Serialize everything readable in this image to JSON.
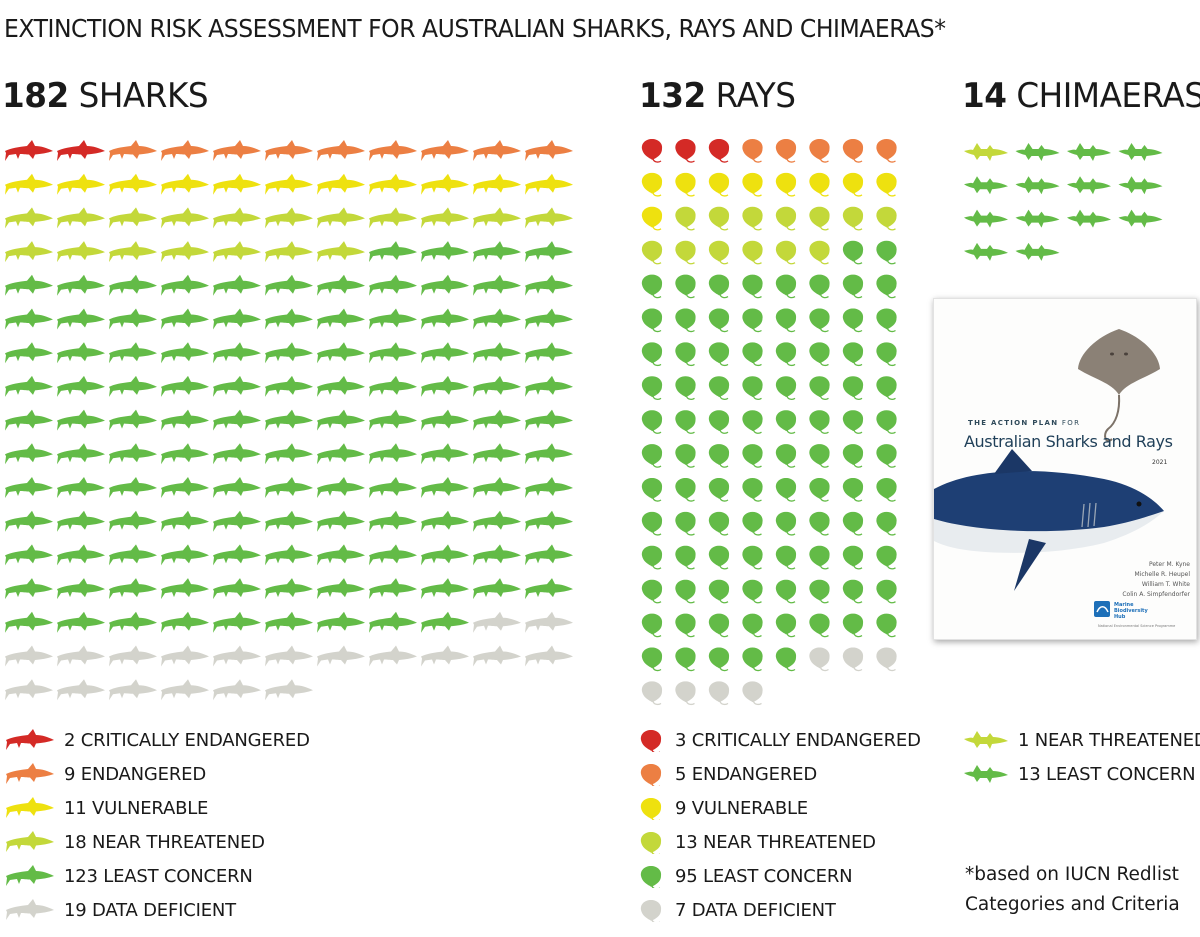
{
  "title": "EXTINCTION RISK ASSESSMENT FOR AUSTRALIAN SHARKS, RAYS AND CHIMAERAS*",
  "colors": {
    "critically_endangered": "#d42a26",
    "endangered": "#ec7f43",
    "vulnerable": "#eee10f",
    "near_threatened": "#c3d83a",
    "least_concern": "#63bb47",
    "data_deficient": "#d3d3cc"
  },
  "chart_data": [
    {
      "type": "pictogram",
      "group": "sharks",
      "heading_number": "182",
      "heading_label": "SHARKS",
      "total": 182,
      "icon": "shark-icon",
      "icons_per_row": 11,
      "categories": [
        "critically_endangered",
        "endangered",
        "vulnerable",
        "near_threatened",
        "least_concern",
        "data_deficient"
      ],
      "values": [
        2,
        9,
        11,
        18,
        123,
        19
      ],
      "legend": [
        {
          "category": "critically_endangered",
          "label": "2 CRITICALLY ENDANGERED"
        },
        {
          "category": "endangered",
          "label": "9 ENDANGERED"
        },
        {
          "category": "vulnerable",
          "label": "11 VULNERABLE"
        },
        {
          "category": "near_threatened",
          "label": "18 NEAR THREATENED"
        },
        {
          "category": "least_concern",
          "label": "123 LEAST CONCERN"
        },
        {
          "category": "data_deficient",
          "label": "19 DATA DEFICIENT"
        }
      ]
    },
    {
      "type": "pictogram",
      "group": "rays",
      "heading_number": "132",
      "heading_label": "RAYS",
      "total": 132,
      "icon": "ray-icon",
      "icons_per_row": 8,
      "categories": [
        "critically_endangered",
        "endangered",
        "vulnerable",
        "near_threatened",
        "least_concern",
        "data_deficient"
      ],
      "values": [
        3,
        5,
        9,
        13,
        95,
        7
      ],
      "legend": [
        {
          "category": "critically_endangered",
          "label": "3 CRITICALLY ENDANGERED"
        },
        {
          "category": "endangered",
          "label": "5 ENDANGERED"
        },
        {
          "category": "vulnerable",
          "label": "9 VULNERABLE"
        },
        {
          "category": "near_threatened",
          "label": "13 NEAR THREATENED"
        },
        {
          "category": "least_concern",
          "label": "95 LEAST CONCERN"
        },
        {
          "category": "data_deficient",
          "label": "7 DATA DEFICIENT"
        }
      ]
    },
    {
      "type": "pictogram",
      "group": "chimaeras",
      "heading_number": "14",
      "heading_label": "CHIMAERAS",
      "total": 14,
      "icon": "chimaera-icon",
      "icons_per_row": 4,
      "categories": [
        "near_threatened",
        "least_concern"
      ],
      "values": [
        1,
        13
      ],
      "legend": [
        {
          "category": "near_threatened",
          "label": "1 NEAR THREATENED"
        },
        {
          "category": "least_concern",
          "label": "13 LEAST CONCERN"
        }
      ]
    }
  ],
  "footnote": {
    "line1": "*based on IUCN Redlist",
    "line2": "Categories and Criteria"
  },
  "book_cover": {
    "pre_title_bold": "THE ACTION PLAN",
    "pre_title_rest": " FOR",
    "title": "Australian Sharks and Rays",
    "year": "2021",
    "authors": [
      "Peter M. Kyne",
      "Michelle R. Heupel",
      "William T. White",
      "Colin A. Simpfendorfer"
    ],
    "logo_text": [
      "Marine",
      "Biodiversity",
      "Hub"
    ],
    "program": "National Environmental Science Programme"
  }
}
